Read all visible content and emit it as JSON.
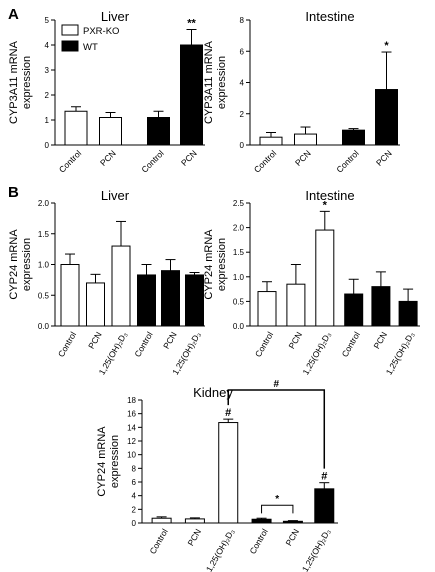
{
  "panels": [
    {
      "letter": "A"
    },
    {
      "letter": "B"
    }
  ],
  "legend": {
    "items": [
      {
        "label": "PXR-KO",
        "color": "#ffffff"
      },
      {
        "label": "WT",
        "color": "#000000"
      }
    ]
  },
  "chart_data": [
    {
      "type": "bar",
      "title": "Liver",
      "ylabel": "CYP3A11 mRNA expression",
      "ylabel_lines": [
        "CYP3A11 mRNA",
        "expression"
      ],
      "categories": [
        "Control",
        "PCN",
        "Control",
        "PCN"
      ],
      "x_label_angle": -45,
      "groups": [
        "PXR-KO",
        "PXR-KO",
        "WT",
        "WT"
      ],
      "values": [
        1.35,
        1.1,
        1.1,
        4.0
      ],
      "errors": [
        0.18,
        0.2,
        0.25,
        0.62
      ],
      "significance": [
        "",
        "",
        "",
        "**"
      ],
      "ylim": [
        0,
        5
      ],
      "yticks": [
        0,
        1,
        2,
        3,
        4,
        5
      ],
      "ytick_labels": [
        "0",
        "1",
        "2",
        "3",
        "4",
        "5"
      ],
      "group_gap": true
    },
    {
      "type": "bar",
      "title": "Intestine",
      "ylabel": "CYP3A11 mRNA expression",
      "ylabel_lines": [
        "CYP3A11 mRNA",
        "expression"
      ],
      "categories": [
        "Control",
        "PCN",
        "Control",
        "PCN"
      ],
      "x_label_angle": -45,
      "groups": [
        "PXR-KO",
        "PXR-KO",
        "WT",
        "WT"
      ],
      "values": [
        0.5,
        0.7,
        0.95,
        3.55
      ],
      "errors": [
        0.3,
        0.45,
        0.1,
        2.4
      ],
      "significance": [
        "",
        "",
        "",
        "*"
      ],
      "ylim": [
        0,
        8
      ],
      "yticks": [
        0,
        2,
        4,
        6,
        8
      ],
      "ytick_labels": [
        "0",
        "2",
        "4",
        "6",
        "8"
      ],
      "group_gap": true
    },
    {
      "type": "bar",
      "title": "Liver",
      "ylabel": "CYP24 mRNA expression",
      "ylabel_lines": [
        "CYP24 mRNA",
        "expression"
      ],
      "categories": [
        "Control",
        "PCN",
        "1,25(OH)₂D₃",
        "Control",
        "PCN",
        "1,25(OH)₂D₃"
      ],
      "x_label_angle": -60,
      "groups": [
        "PXR-KO",
        "PXR-KO",
        "PXR-KO",
        "WT",
        "WT",
        "WT"
      ],
      "values": [
        1.0,
        0.7,
        1.3,
        0.83,
        0.9,
        0.83
      ],
      "errors": [
        0.17,
        0.14,
        0.4,
        0.17,
        0.18,
        0.04
      ],
      "significance": [
        "",
        "",
        "",
        "",
        "",
        ""
      ],
      "ylim": [
        0,
        2.0
      ],
      "yticks": [
        0,
        0.5,
        1.0,
        1.5,
        2.0
      ],
      "ytick_labels": [
        "0.0",
        "0.5",
        "1.0",
        "1.5",
        "2.0"
      ],
      "group_gap": false
    },
    {
      "type": "bar",
      "title": "Intestine",
      "ylabel": "CYP24 mRNA expression",
      "ylabel_lines": [
        "CYP24 mRNA",
        "expression"
      ],
      "categories": [
        "Control",
        "PCN",
        "1,25(OH)₂D₃",
        "Control",
        "PCN",
        "1,25(OH)₂D₃"
      ],
      "x_label_angle": -60,
      "groups": [
        "PXR-KO",
        "PXR-KO",
        "PXR-KO",
        "WT",
        "WT",
        "WT"
      ],
      "values": [
        0.7,
        0.85,
        1.95,
        0.65,
        0.8,
        0.5
      ],
      "errors": [
        0.2,
        0.4,
        0.38,
        0.3,
        0.3,
        0.25
      ],
      "significance": [
        "",
        "",
        "*",
        "",
        "",
        ""
      ],
      "ylim": [
        0,
        2.5
      ],
      "yticks": [
        0,
        0.5,
        1.0,
        1.5,
        2.0,
        2.5
      ],
      "ytick_labels": [
        "0.0",
        "0.5",
        "1.0",
        "1.5",
        "2.0",
        "2.5"
      ],
      "group_gap": false
    },
    {
      "type": "bar",
      "title": "Kidney",
      "ylabel": "CYP24 mRNA expression",
      "ylabel_lines": [
        "CYP24 mRNA",
        "expression"
      ],
      "categories": [
        "Control",
        "PCN",
        "1,25(OH)₂D₃",
        "Control",
        "PCN",
        "1,25(OH)₂D₃"
      ],
      "x_label_angle": -60,
      "groups": [
        "PXR-KO",
        "PXR-KO",
        "PXR-KO",
        "WT",
        "WT",
        "WT"
      ],
      "values": [
        0.7,
        0.6,
        14.7,
        0.55,
        0.25,
        5.0
      ],
      "errors": [
        0.2,
        0.15,
        0.5,
        0.15,
        0.1,
        0.9
      ],
      "significance": [
        "",
        "",
        "#",
        "",
        "",
        "#"
      ],
      "ylim": [
        0,
        18
      ],
      "yticks": [
        0,
        2,
        4,
        6,
        8,
        10,
        12,
        14,
        16,
        18
      ],
      "ytick_labels": [
        "0",
        "2",
        "4",
        "6",
        "8",
        "10",
        "12",
        "14",
        "16",
        "18"
      ],
      "group_gap": false,
      "brackets": [
        {
          "from": 2,
          "to": 5,
          "label": "#"
        },
        {
          "from": 3,
          "to": 4,
          "label": "*"
        }
      ]
    }
  ]
}
